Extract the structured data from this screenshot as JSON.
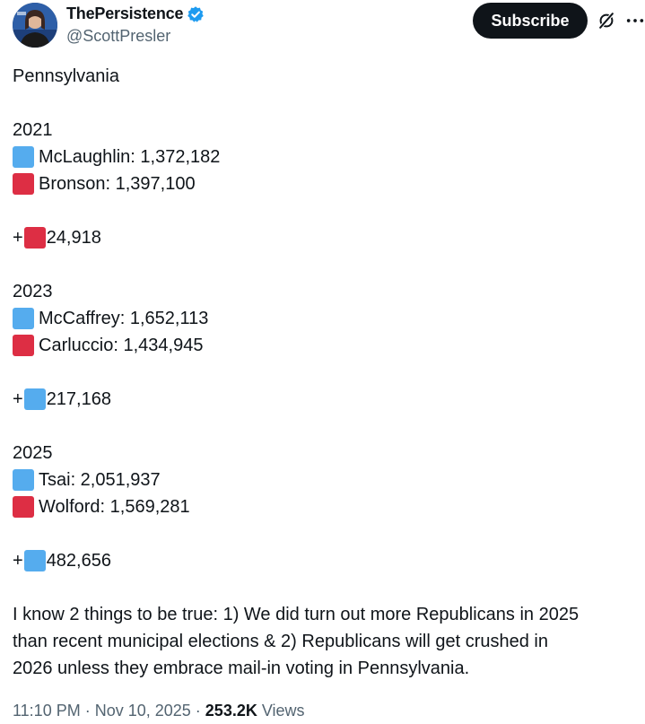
{
  "author": {
    "display_name": "ThePersistence",
    "handle": "@ScottPresler",
    "verified_color": "#1d9bf0"
  },
  "actions": {
    "subscribe_label": "Subscribe"
  },
  "icons": {
    "verified": "verified-badge-icon",
    "grok": "grok-icon",
    "more": "more-icon",
    "blue_square": "blue-square-icon",
    "red_square": "red-square-icon"
  },
  "colors": {
    "blue_square": "#55acee",
    "red_square": "#dd2e44",
    "text": "#0f1419",
    "muted": "#536471"
  },
  "tweet": {
    "heading": "Pennsylvania",
    "races": [
      {
        "year": "2021",
        "candidates": [
          {
            "party_color": "blue",
            "text": "McLaughlin: 1,372,182"
          },
          {
            "party_color": "red",
            "text": "Bronson: 1,397,100"
          }
        ],
        "margin_prefix": "+",
        "margin_color": "red",
        "margin_value": "24,918"
      },
      {
        "year": "2023",
        "candidates": [
          {
            "party_color": "blue",
            "text": "McCaffrey: 1,652,113"
          },
          {
            "party_color": "red",
            "text": "Carluccio: 1,434,945"
          }
        ],
        "margin_prefix": "+",
        "margin_color": "blue",
        "margin_value": "217,168"
      },
      {
        "year": "2025",
        "candidates": [
          {
            "party_color": "blue",
            "text": "Tsai: 2,051,937"
          },
          {
            "party_color": "red",
            "text": "Wolford: 1,569,281"
          }
        ],
        "margin_prefix": "+",
        "margin_color": "blue",
        "margin_value": "482,656"
      }
    ],
    "closing_lines": [
      "I know 2 things to be true: 1) We did turn out more Republicans in 2025",
      "than recent municipal elections & 2) Republicans will get crushed in",
      "2026 unless they embrace mail-in voting in Pennsylvania."
    ]
  },
  "meta": {
    "time": "11:10 PM",
    "separator": " · ",
    "date": "Nov 10, 2025",
    "views_count": "253.2K",
    "views_label": " Views"
  }
}
